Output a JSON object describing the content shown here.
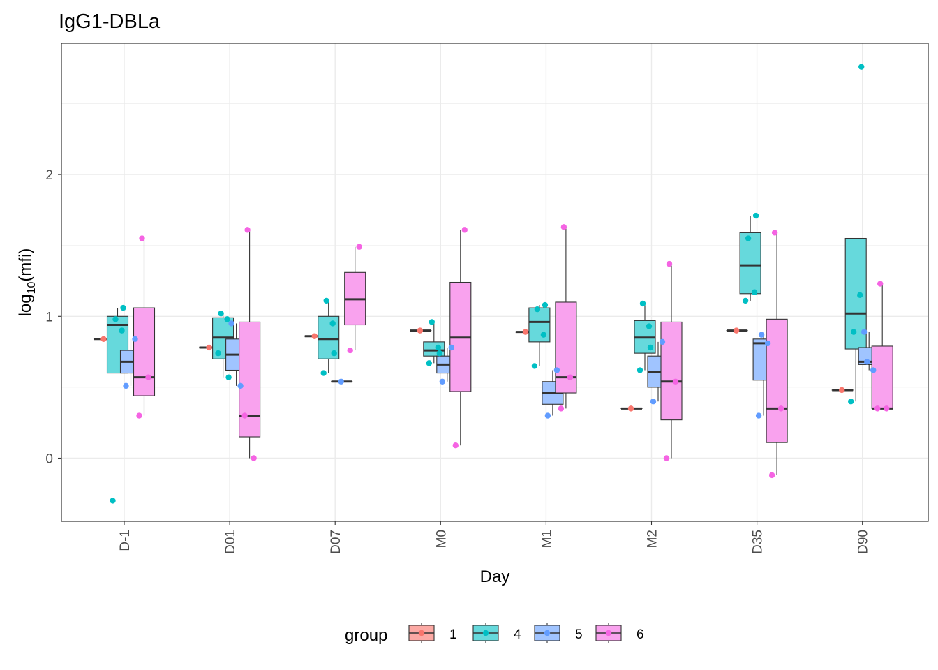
{
  "chart_data": {
    "type": "boxplot",
    "title": "IgG1-DBLa",
    "xlabel": "Day",
    "ylabel": {
      "base": "log",
      "sub": "10",
      "rest": "(mfi)"
    },
    "ylim": [
      -0.45,
      2.9
    ],
    "yticks": [
      0,
      1,
      2
    ],
    "grid": true,
    "legend_placement": "bottom",
    "legend_title": "group",
    "categories": [
      "D-1",
      "D01",
      "D07",
      "M0",
      "M1",
      "M2",
      "D35",
      "D90"
    ],
    "groups": [
      {
        "name": "1",
        "color": "#F8766D",
        "fill": "#FCA9A4"
      },
      {
        "name": "4",
        "color": "#00BFC4",
        "fill": "#66D9DC"
      },
      {
        "name": "5",
        "color": "#619CFF",
        "fill": "#A0C4FF"
      },
      {
        "name": "6",
        "color": "#F564E3",
        "fill": "#F9A2EE"
      }
    ],
    "boxes": {
      "1": [
        {
          "q1": 0.84,
          "median": 0.84,
          "q3": 0.84,
          "lo": 0.84,
          "hi": 0.84
        },
        {
          "q1": 0.78,
          "median": 0.78,
          "q3": 0.78,
          "lo": 0.78,
          "hi": 0.78
        },
        {
          "q1": 0.86,
          "median": 0.86,
          "q3": 0.86,
          "lo": 0.86,
          "hi": 0.86
        },
        {
          "q1": 0.9,
          "median": 0.9,
          "q3": 0.9,
          "lo": 0.9,
          "hi": 0.9
        },
        {
          "q1": 0.89,
          "median": 0.89,
          "q3": 0.89,
          "lo": 0.89,
          "hi": 0.89
        },
        {
          "q1": 0.35,
          "median": 0.35,
          "q3": 0.35,
          "lo": 0.35,
          "hi": 0.35
        },
        {
          "q1": 0.9,
          "median": 0.9,
          "q3": 0.9,
          "lo": 0.9,
          "hi": 0.9
        },
        {
          "q1": 0.48,
          "median": 0.48,
          "q3": 0.48,
          "lo": 0.48,
          "hi": 0.48
        }
      ],
      "4": [
        {
          "q1": 0.6,
          "median": 0.94,
          "q3": 1.0,
          "lo": 0.6,
          "hi": 1.06
        },
        {
          "q1": 0.7,
          "median": 0.85,
          "q3": 0.99,
          "lo": 0.57,
          "hi": 1.02
        },
        {
          "q1": 0.7,
          "median": 0.84,
          "q3": 1.0,
          "lo": 0.6,
          "hi": 1.11
        },
        {
          "q1": 0.72,
          "median": 0.76,
          "q3": 0.82,
          "lo": 0.67,
          "hi": 0.96
        },
        {
          "q1": 0.82,
          "median": 0.96,
          "q3": 1.06,
          "lo": 0.65,
          "hi": 1.08
        },
        {
          "q1": 0.74,
          "median": 0.85,
          "q3": 0.97,
          "lo": 0.62,
          "hi": 1.09
        },
        {
          "q1": 1.16,
          "median": 1.36,
          "q3": 1.59,
          "lo": 1.11,
          "hi": 1.71
        },
        {
          "q1": 0.77,
          "median": 1.02,
          "q3": 1.55,
          "lo": 0.4,
          "hi": 1.55
        }
      ],
      "5": [
        {
          "q1": 0.6,
          "median": 0.68,
          "q3": 0.76,
          "lo": 0.51,
          "hi": 0.84
        },
        {
          "q1": 0.62,
          "median": 0.73,
          "q3": 0.84,
          "lo": 0.51,
          "hi": 0.95
        },
        {
          "q1": 0.54,
          "median": 0.54,
          "q3": 0.54,
          "lo": 0.54,
          "hi": 0.54
        },
        {
          "q1": 0.6,
          "median": 0.66,
          "q3": 0.72,
          "lo": 0.54,
          "hi": 0.78
        },
        {
          "q1": 0.38,
          "median": 0.46,
          "q3": 0.54,
          "lo": 0.3,
          "hi": 0.62
        },
        {
          "q1": 0.5,
          "median": 0.61,
          "q3": 0.72,
          "lo": 0.4,
          "hi": 0.82
        },
        {
          "q1": 0.55,
          "median": 0.81,
          "q3": 0.84,
          "lo": 0.3,
          "hi": 0.87
        },
        {
          "q1": 0.66,
          "median": 0.68,
          "q3": 0.78,
          "lo": 0.62,
          "hi": 0.89
        }
      ],
      "6": [
        {
          "q1": 0.44,
          "median": 0.57,
          "q3": 1.06,
          "lo": 0.3,
          "hi": 1.55
        },
        {
          "q1": 0.15,
          "median": 0.3,
          "q3": 0.96,
          "lo": 0.0,
          "hi": 1.61
        },
        {
          "q1": 0.94,
          "median": 1.12,
          "q3": 1.31,
          "lo": 0.76,
          "hi": 1.49
        },
        {
          "q1": 0.47,
          "median": 0.85,
          "q3": 1.24,
          "lo": 0.09,
          "hi": 1.61
        },
        {
          "q1": 0.46,
          "median": 0.57,
          "q3": 1.1,
          "lo": 0.35,
          "hi": 1.63
        },
        {
          "q1": 0.27,
          "median": 0.54,
          "q3": 0.96,
          "lo": 0.0,
          "hi": 1.37
        },
        {
          "q1": 0.11,
          "median": 0.35,
          "q3": 0.98,
          "lo": -0.12,
          "hi": 1.59
        },
        {
          "q1": 0.35,
          "median": 0.35,
          "q3": 0.79,
          "lo": 0.35,
          "hi": 1.23
        }
      ]
    },
    "points": {
      "1": [
        [
          0.84
        ],
        [
          0.78
        ],
        [
          0.86
        ],
        [
          0.9
        ],
        [
          0.89
        ],
        [
          0.35
        ],
        [
          0.9
        ],
        [
          0.48
        ]
      ],
      "4": [
        [
          -0.3,
          0.9,
          0.98,
          1.06
        ],
        [
          0.74,
          0.98,
          1.02,
          0.57
        ],
        [
          0.6,
          0.95,
          1.11,
          0.74
        ],
        [
          0.67,
          0.78,
          0.96,
          0.74
        ],
        [
          0.65,
          0.87,
          1.05,
          1.08
        ],
        [
          0.62,
          0.93,
          1.09,
          0.78
        ],
        [
          1.11,
          1.17,
          1.55,
          1.71
        ],
        [
          0.4,
          1.15,
          0.89,
          2.76
        ]
      ],
      "5": [
        [
          0.51,
          0.84
        ],
        [
          0.95,
          0.51
        ],
        [
          0.54
        ],
        [
          0.54,
          0.78
        ],
        [
          0.3,
          0.62
        ],
        [
          0.4,
          0.82
        ],
        [
          0.3,
          0.81,
          0.87
        ],
        [
          0.89,
          0.62,
          0.68
        ]
      ],
      "6": [
        [
          0.3,
          0.57,
          1.55
        ],
        [
          0.3,
          0.0,
          1.61
        ],
        [
          0.76,
          1.49
        ],
        [
          0.09,
          1.61
        ],
        [
          0.35,
          0.57,
          1.63
        ],
        [
          0.0,
          0.54,
          1.37
        ],
        [
          -0.12,
          0.35,
          1.59
        ],
        [
          0.35,
          0.35,
          1.23
        ]
      ]
    }
  }
}
